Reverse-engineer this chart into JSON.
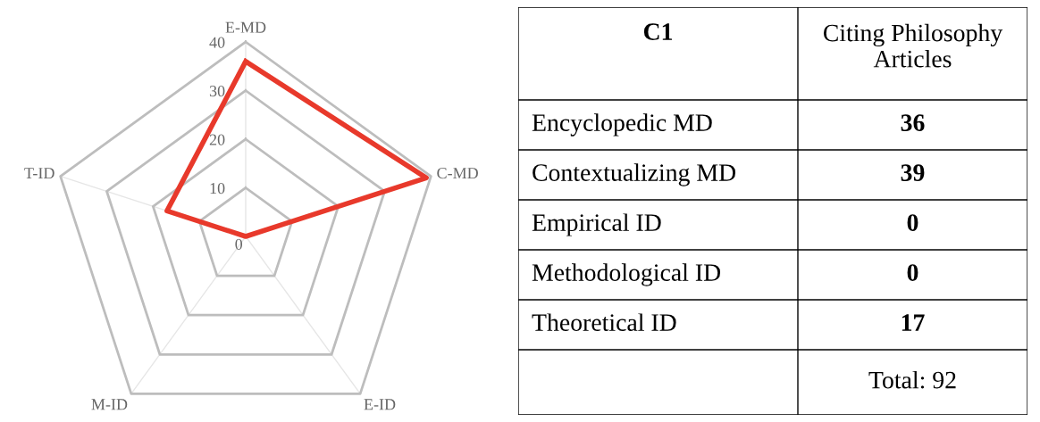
{
  "chart_data": [
    {
      "type": "radar",
      "categories": [
        "E-MD",
        "C-MD",
        "E-ID",
        "M-ID",
        "T-ID"
      ],
      "ylim": [
        0,
        40
      ],
      "yticks": [
        0,
        10,
        20,
        30,
        40
      ],
      "series": [
        {
          "color": "#e8392b",
          "values": [
            36,
            39,
            0,
            0,
            17
          ]
        }
      ]
    },
    {
      "type": "other",
      "title": "C1",
      "subtitle": "Citing Philosophy Articles",
      "categories": [
        "Encyclopedic MD",
        "Contextualizing MD",
        "Empirical ID",
        "Methodological ID",
        "Theoretical ID"
      ],
      "values": [
        36,
        39,
        0,
        0,
        17
      ],
      "data_labels": true,
      "annotations": [
        "Total: 92"
      ]
    }
  ]
}
